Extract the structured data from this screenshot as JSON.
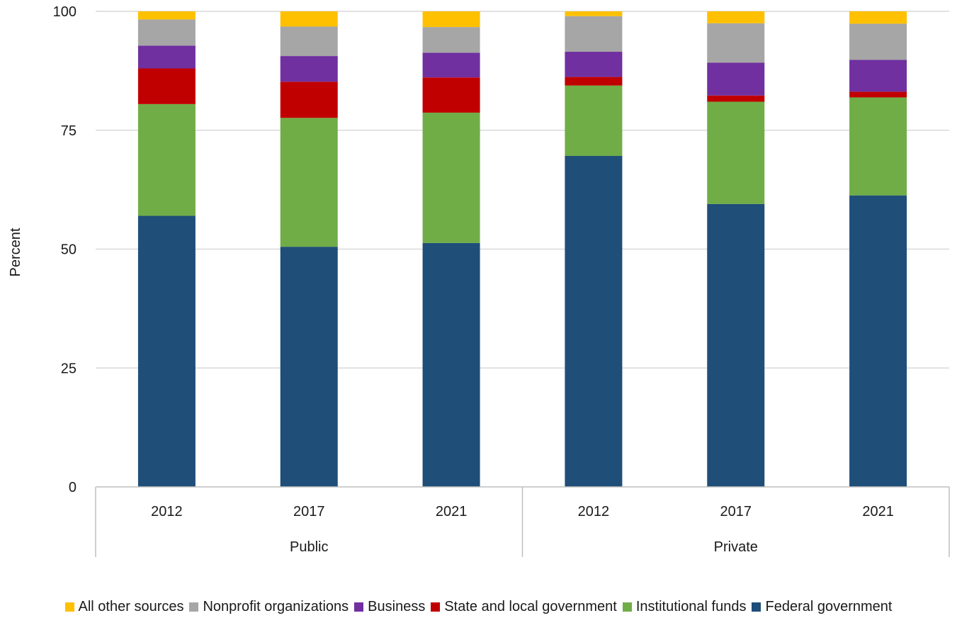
{
  "chart_data": {
    "type": "bar",
    "stacked": true,
    "ylabel": "Percent",
    "ylim": [
      0,
      100
    ],
    "yticks": [
      0,
      25,
      50,
      75,
      100
    ],
    "grid": true,
    "legend_position": "bottom",
    "groups": [
      {
        "label": "Public",
        "categories": [
          "2012",
          "2017",
          "2021"
        ]
      },
      {
        "label": "Private",
        "categories": [
          "2012",
          "2017",
          "2021"
        ]
      }
    ],
    "series": [
      {
        "name": "Federal government",
        "color": "#1F4E79",
        "values": [
          57.0,
          50.5,
          51.3,
          69.6,
          59.5,
          61.3
        ]
      },
      {
        "name": "Institutional funds",
        "color": "#70AD47",
        "values": [
          23.5,
          27.1,
          27.4,
          14.8,
          21.5,
          20.6
        ]
      },
      {
        "name": "State and local government",
        "color": "#C00000",
        "values": [
          7.5,
          7.6,
          7.4,
          1.8,
          1.3,
          1.2
        ]
      },
      {
        "name": "Business",
        "color": "#7030A0",
        "values": [
          4.8,
          5.4,
          5.2,
          5.3,
          6.9,
          6.7
        ]
      },
      {
        "name": "Nonprofit organizations",
        "color": "#A6A6A6",
        "values": [
          5.5,
          6.2,
          5.4,
          7.5,
          8.3,
          7.6
        ]
      },
      {
        "name": "All other sources",
        "color": "#FFC000",
        "values": [
          1.7,
          3.2,
          3.3,
          1.0,
          2.5,
          2.6
        ]
      }
    ]
  }
}
